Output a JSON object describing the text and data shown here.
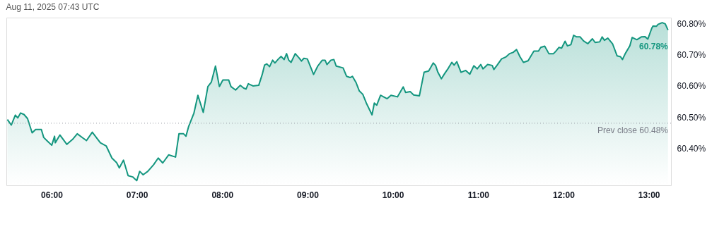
{
  "chart_data": {
    "type": "area",
    "annotations": [
      "Aug 11, 2025 07:43 UTC",
      {
        "text": "60.78%",
        "x": 13.225,
        "y": 60.78
      }
    ],
    "x": [
      5.482,
      5.528,
      5.575,
      5.604,
      5.637,
      5.677,
      5.718,
      5.772,
      5.813,
      5.88,
      5.908,
      5.949,
      6.002,
      6.035,
      6.043,
      6.098,
      6.179,
      6.246,
      6.301,
      6.355,
      6.409,
      6.477,
      6.572,
      6.64,
      6.707,
      6.762,
      6.794,
      6.843,
      6.897,
      6.951,
      6.998,
      7.033,
      7.073,
      7.128,
      7.195,
      7.25,
      7.303,
      7.372,
      7.453,
      7.493,
      7.547,
      7.575,
      7.607,
      7.669,
      7.715,
      7.778,
      7.832,
      7.872,
      7.921,
      7.967,
      8.008,
      8.076,
      8.103,
      8.157,
      8.211,
      8.252,
      8.279,
      8.306,
      8.36,
      8.428,
      8.469,
      8.496,
      8.523,
      8.555,
      8.591,
      8.618,
      8.659,
      8.691,
      8.726,
      8.754,
      8.78,
      8.807,
      8.856,
      8.902,
      8.929,
      8.957,
      8.998,
      9.071,
      9.12,
      9.173,
      9.206,
      9.228,
      9.274,
      9.309,
      9.336,
      9.417,
      9.458,
      9.498,
      9.526,
      9.567,
      9.607,
      9.648,
      9.689,
      9.756,
      9.783,
      9.811,
      9.856,
      9.933,
      9.978,
      10.054,
      10.122,
      10.149,
      10.203,
      10.244,
      10.311,
      10.366,
      10.42,
      10.474,
      10.501,
      10.528,
      10.569,
      10.61,
      10.65,
      10.691,
      10.718,
      10.75,
      10.799,
      10.854,
      10.902,
      10.949,
      10.989,
      11.03,
      11.057,
      11.111,
      11.165,
      11.184,
      11.22,
      11.274,
      11.328,
      11.368,
      11.409,
      11.45,
      11.49,
      11.531,
      11.585,
      11.653,
      11.707,
      11.734,
      11.78,
      11.829,
      11.883,
      11.911,
      11.946,
      11.978,
      12.019,
      12.046,
      12.087,
      12.119,
      12.154,
      12.195,
      12.236,
      12.285,
      12.339,
      12.371,
      12.425,
      12.453,
      12.48,
      12.52,
      12.575,
      12.628,
      12.669,
      12.691,
      12.724,
      12.778,
      12.805,
      12.86,
      12.913,
      12.954,
      12.989,
      13.035,
      13.049,
      13.089,
      13.108,
      13.157,
      13.193,
      13.225
    ],
    "series": [
      {
        "color": "#14967f",
        "values": [
          60.492,
          60.474,
          60.506,
          60.497,
          60.513,
          60.508,
          60.495,
          60.449,
          60.46,
          60.46,
          60.434,
          60.423,
          60.409,
          60.438,
          60.417,
          60.442,
          60.412,
          60.428,
          60.446,
          60.435,
          60.424,
          60.451,
          60.417,
          60.407,
          60.368,
          60.353,
          60.336,
          60.361,
          60.311,
          60.307,
          60.295,
          60.325,
          60.314,
          60.325,
          60.346,
          60.368,
          60.352,
          60.378,
          60.371,
          60.446,
          60.446,
          60.438,
          60.47,
          60.513,
          60.57,
          60.515,
          60.598,
          60.612,
          60.664,
          60.598,
          60.619,
          60.619,
          60.598,
          60.587,
          60.602,
          60.593,
          60.59,
          60.607,
          60.6,
          60.602,
          60.637,
          60.667,
          60.671,
          60.662,
          60.683,
          60.674,
          60.687,
          60.695,
          60.685,
          60.704,
          60.683,
          60.676,
          60.704,
          60.69,
          60.68,
          60.689,
          60.687,
          60.637,
          60.664,
          60.683,
          60.683,
          60.669,
          60.683,
          60.685,
          60.664,
          60.658,
          60.631,
          60.627,
          60.631,
          60.612,
          60.584,
          60.573,
          60.545,
          60.507,
          60.545,
          60.538,
          60.57,
          60.559,
          60.57,
          60.565,
          60.597,
          60.579,
          60.582,
          60.571,
          60.568,
          60.644,
          60.648,
          60.674,
          60.666,
          60.644,
          60.623,
          60.641,
          60.657,
          60.676,
          60.667,
          60.678,
          60.644,
          60.65,
          60.638,
          60.665,
          60.655,
          60.669,
          60.655,
          60.669,
          60.666,
          60.653,
          60.666,
          60.687,
          60.694,
          60.704,
          60.708,
          60.717,
          60.694,
          60.676,
          60.681,
          60.712,
          60.712,
          60.724,
          60.728,
          60.704,
          60.704,
          60.712,
          60.724,
          60.722,
          60.744,
          60.729,
          60.733,
          60.763,
          60.758,
          60.758,
          60.745,
          60.736,
          60.752,
          60.74,
          60.742,
          60.758,
          60.747,
          60.754,
          60.736,
          60.697,
          60.694,
          60.685,
          60.704,
          60.729,
          60.756,
          60.749,
          60.758,
          60.759,
          60.751,
          60.786,
          60.793,
          60.792,
          60.798,
          60.804,
          60.8,
          60.78
        ]
      }
    ],
    "xlim": [
      5.47,
      13.26
    ],
    "ylim": [
      60.28,
      60.82
    ],
    "xticks": [
      {
        "value": 6,
        "label": "06:00"
      },
      {
        "value": 7,
        "label": "07:00"
      },
      {
        "value": 8,
        "label": "08:00"
      },
      {
        "value": 9,
        "label": "09:00"
      },
      {
        "value": 10,
        "label": "10:00"
      },
      {
        "value": 11,
        "label": "11:00"
      },
      {
        "value": 12,
        "label": "12:00"
      },
      {
        "value": 13,
        "label": "13:00"
      }
    ],
    "yticks": [
      {
        "value": 60.4,
        "label": "60.40%"
      },
      {
        "value": 60.5,
        "label": "60.50%"
      },
      {
        "value": 60.6,
        "label": "60.60%"
      },
      {
        "value": 60.7,
        "label": "60.70%"
      },
      {
        "value": 60.8,
        "label": "60.80%"
      }
    ],
    "ref_lines": [
      {
        "axis": "y",
        "value": 60.48,
        "label": "Prev close 60.48%",
        "color": "#9598a1",
        "line_style": "dotted"
      }
    ]
  }
}
